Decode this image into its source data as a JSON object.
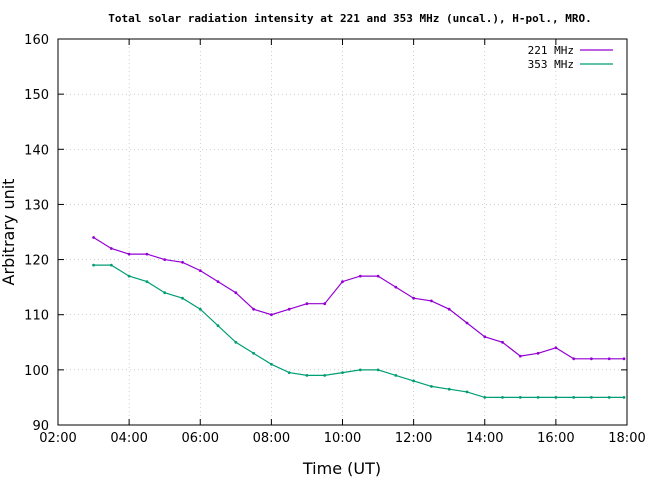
{
  "chart_data": {
    "type": "line",
    "title": "Total solar radiation intensity at 221 and 353 MHz (uncal.), H-pol., MRO.",
    "xlabel": "Time (UT)",
    "ylabel": "Arbitrary unit",
    "xlim": [
      "02:00",
      "18:00"
    ],
    "ylim": [
      90,
      160
    ],
    "x_ticks": [
      "02:00",
      "04:00",
      "06:00",
      "08:00",
      "10:00",
      "12:00",
      "14:00",
      "16:00",
      "18:00"
    ],
    "y_ticks": [
      "90",
      "100",
      "110",
      "120",
      "130",
      "140",
      "150",
      "160"
    ],
    "legend_position": "top-right",
    "grid": true,
    "series": [
      {
        "name": "221 MHz",
        "color": "#9400d3",
        "x": [
          "03:00",
          "03:30",
          "04:00",
          "04:30",
          "05:00",
          "05:30",
          "06:00",
          "06:30",
          "07:00",
          "07:30",
          "08:00",
          "08:30",
          "09:00",
          "09:30",
          "10:00",
          "10:30",
          "11:00",
          "11:30",
          "12:00",
          "12:30",
          "13:00",
          "13:30",
          "14:00",
          "14:30",
          "15:00",
          "15:30",
          "16:00",
          "16:30",
          "17:00",
          "17:30",
          "17:55"
        ],
        "values": [
          124,
          122,
          121,
          121,
          120,
          119.5,
          118,
          116,
          114,
          111,
          110,
          111,
          112,
          112,
          116,
          117,
          117,
          115,
          113,
          112.5,
          111,
          108.5,
          106,
          105,
          102.5,
          103,
          104,
          102,
          102,
          102,
          102
        ]
      },
      {
        "name": "353 MHz",
        "color": "#009e73",
        "x": [
          "03:00",
          "03:30",
          "04:00",
          "04:30",
          "05:00",
          "05:30",
          "06:00",
          "06:30",
          "07:00",
          "07:30",
          "08:00",
          "08:30",
          "09:00",
          "09:30",
          "10:00",
          "10:30",
          "11:00",
          "11:30",
          "12:00",
          "12:30",
          "13:00",
          "13:30",
          "14:00",
          "14:30",
          "15:00",
          "15:30",
          "16:00",
          "16:30",
          "17:00",
          "17:30",
          "17:55"
        ],
        "values": [
          119,
          119,
          117,
          116,
          114,
          113,
          111,
          108,
          105,
          103,
          101,
          99.5,
          99,
          99,
          99.5,
          100,
          100,
          99,
          98,
          97,
          96.5,
          96,
          95,
          95,
          95,
          95,
          95,
          95,
          95,
          95,
          95
        ]
      }
    ]
  }
}
